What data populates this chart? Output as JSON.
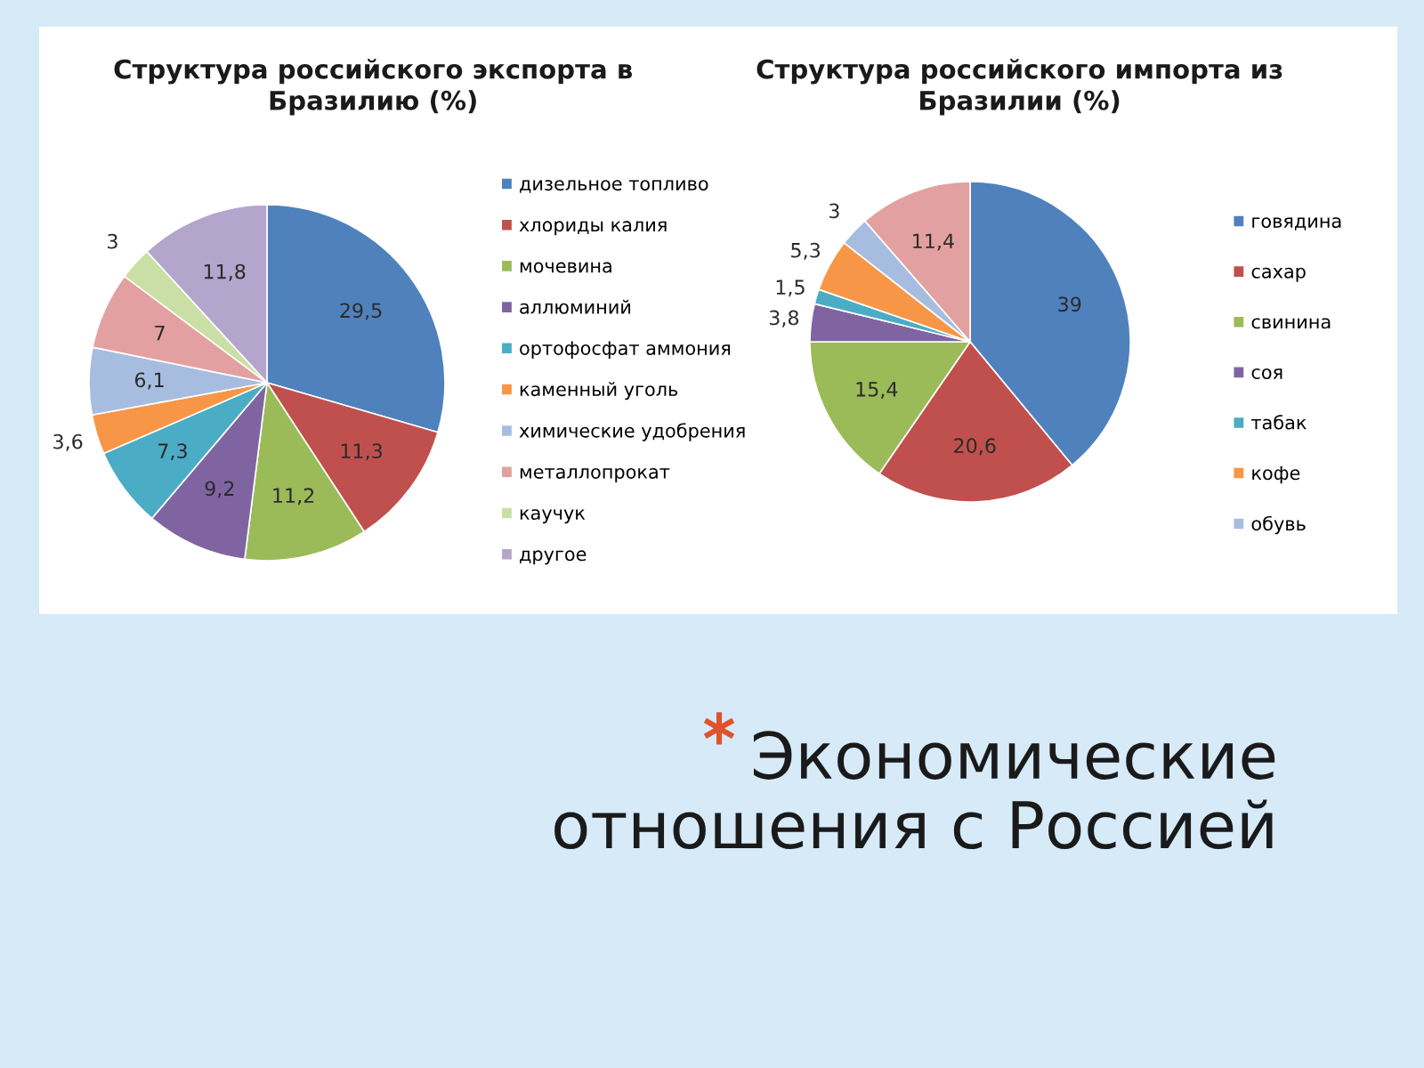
{
  "chart_data": [
    {
      "type": "pie",
      "title": "Структура российского экспорта в\nБразилию (%)",
      "categories": [
        "дизельное топливо",
        "хлориды калия",
        "мочевина",
        "аллюминий",
        "ортофосфат аммония",
        "каменный уголь",
        "химические удобрения",
        "металлопрокат",
        "каучук",
        "другое"
      ],
      "values": [
        29.5,
        11.3,
        11.2,
        9.2,
        7.3,
        3.6,
        6.1,
        7,
        3,
        11.8
      ],
      "value_labels": [
        "29,5",
        "11,3",
        "11,2",
        "9,2",
        "7,3",
        "3,6",
        "6,1",
        "7",
        "3",
        "11,8"
      ],
      "colors": [
        "#4f81bd",
        "#c0504d",
        "#9bbb59",
        "#8064a2",
        "#4bacc6",
        "#f79646",
        "#a7bde0",
        "#e3a0a0",
        "#c9dfa5",
        "#b4a5cc"
      ],
      "legend": "right"
    },
    {
      "type": "pie",
      "title": "Структура российского импорта из\nБразилии (%)",
      "categories": [
        "говядина",
        "сахар",
        "свинина",
        "соя",
        "табак",
        "кофе",
        "обувь",
        null
      ],
      "values": [
        39,
        20.6,
        15.4,
        3.8,
        1.5,
        5.3,
        3,
        11.4
      ],
      "value_labels": [
        "39",
        "20,6",
        "15,4",
        "3,8",
        "1,5",
        "5,3",
        "3",
        "11,4"
      ],
      "colors": [
        "#4f81bd",
        "#c0504d",
        "#9bbb59",
        "#8064a2",
        "#4bacc6",
        "#f79646",
        "#a7bde0",
        "#e3a0a0"
      ],
      "legend": "right"
    },
    {
      "type": "other",
      "title": "Экономические\nотношения с Россией"
    }
  ]
}
